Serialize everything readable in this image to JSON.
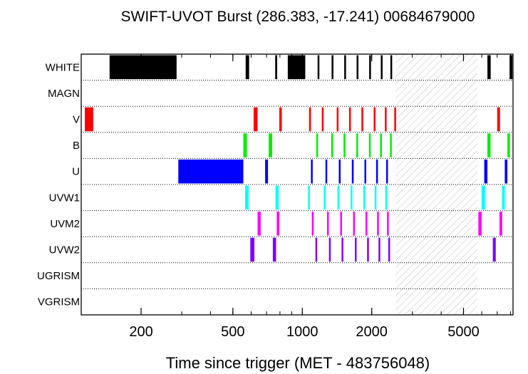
{
  "chart_data": {
    "type": "bar",
    "title": "SWIFT-UVOT Burst (286.383, -17.241) 00684679000",
    "xlabel": "Time since trigger (MET - 483756048)",
    "ylabel": "",
    "x_scale": "log",
    "xlim": [
      110,
      8200
    ],
    "xticks": [
      {
        "value": 200,
        "label": "200"
      },
      {
        "value": 500,
        "label": "500"
      },
      {
        "value": 1000,
        "label": "1000"
      },
      {
        "value": 2000,
        "label": "2000"
      },
      {
        "value": 5000,
        "label": "5000"
      }
    ],
    "rows": [
      "WHITE",
      "MAGN",
      "V",
      "B",
      "U",
      "UVW1",
      "UVM2",
      "UVW2",
      "UGRISM",
      "VGRISM"
    ],
    "shaded_gap": [
      2540,
      5750
    ],
    "series": [
      {
        "filter": "WHITE",
        "color": "#000000",
        "segments": [
          [
            146,
            285
          ],
          [
            568,
            588
          ],
          [
            763,
            778
          ],
          [
            865,
            1030
          ],
          [
            1165,
            1185
          ],
          [
            1340,
            1360
          ],
          [
            1520,
            1540
          ],
          [
            1720,
            1740
          ],
          [
            1950,
            1970
          ],
          [
            2190,
            2210
          ],
          [
            2410,
            2430
          ],
          [
            6350,
            6560
          ],
          [
            7920,
            8150
          ]
        ]
      },
      {
        "filter": "MAGN",
        "color": "#000000",
        "segments": []
      },
      {
        "filter": "V",
        "color": "#ff0000",
        "segments": [
          [
            114,
            124
          ],
          [
            615,
            640
          ],
          [
            795,
            815
          ],
          [
            1070,
            1090
          ],
          [
            1215,
            1235
          ],
          [
            1410,
            1425
          ],
          [
            1595,
            1610
          ],
          [
            1805,
            1820
          ],
          [
            2040,
            2055
          ],
          [
            2280,
            2295
          ],
          [
            2505,
            2520
          ],
          [
            7000,
            7200
          ]
        ]
      },
      {
        "filter": "B",
        "color": "#00ee00",
        "segments": [
          [
            555,
            575
          ],
          [
            715,
            740
          ],
          [
            1150,
            1165
          ],
          [
            1335,
            1350
          ],
          [
            1510,
            1525
          ],
          [
            1715,
            1730
          ],
          [
            1945,
            1960
          ],
          [
            2175,
            2190
          ],
          [
            2400,
            2415
          ],
          [
            6350,
            6550
          ],
          [
            7750,
            7950
          ]
        ]
      },
      {
        "filter": "U",
        "color": "#0000ff",
        "segments": [
          [
            290,
            555
          ],
          [
            690,
            710
          ],
          [
            1090,
            1105
          ],
          [
            1260,
            1275
          ],
          [
            1440,
            1455
          ],
          [
            1640,
            1655
          ],
          [
            1860,
            1875
          ],
          [
            2090,
            2105
          ],
          [
            2310,
            2325
          ],
          [
            6150,
            6350
          ],
          [
            7550,
            7750
          ]
        ]
      },
      {
        "filter": "UVW1",
        "color": "#00ffff",
        "segments": [
          [
            565,
            585
          ],
          [
            765,
            790
          ],
          [
            1060,
            1075
          ],
          [
            1240,
            1255
          ],
          [
            1420,
            1435
          ],
          [
            1620,
            1635
          ],
          [
            1840,
            1855
          ],
          [
            2060,
            2075
          ],
          [
            2290,
            2305
          ],
          [
            5990,
            6200
          ],
          [
            7350,
            7550
          ]
        ]
      },
      {
        "filter": "UVM2",
        "color": "#ff00ff",
        "segments": [
          [
            640,
            660
          ],
          [
            775,
            795
          ],
          [
            1100,
            1115
          ],
          [
            1280,
            1295
          ],
          [
            1460,
            1475
          ],
          [
            1660,
            1675
          ],
          [
            1880,
            1895
          ],
          [
            2110,
            2125
          ],
          [
            2330,
            2345
          ],
          [
            5800,
            5990
          ],
          [
            7160,
            7360
          ]
        ]
      },
      {
        "filter": "UVW2",
        "color": "#8000ff",
        "segments": [
          [
            595,
            620
          ],
          [
            745,
            770
          ],
          [
            1140,
            1155
          ],
          [
            1305,
            1320
          ],
          [
            1480,
            1495
          ],
          [
            1690,
            1705
          ],
          [
            1910,
            1925
          ],
          [
            2140,
            2155
          ],
          [
            2360,
            2375
          ],
          [
            6700,
            6900
          ]
        ]
      },
      {
        "filter": "UGRISM",
        "color": "#000000",
        "segments": []
      },
      {
        "filter": "VGRISM",
        "color": "#000000",
        "segments": []
      }
    ]
  }
}
